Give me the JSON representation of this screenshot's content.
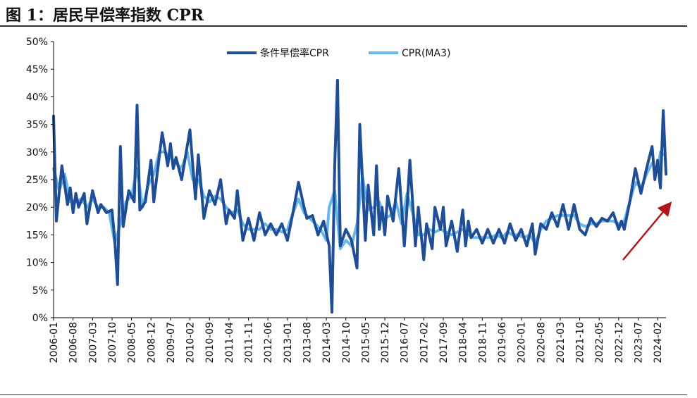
{
  "figure": {
    "title": "图 1：居民早偿率指数 CPR"
  },
  "colors": {
    "series_cpr": "#1f4e96",
    "series_ma3": "#66b8e8",
    "arrow": "#b0161a",
    "axis": "#000000"
  },
  "chart_data": {
    "type": "line",
    "ylim": [
      0,
      50
    ],
    "y_ticks": [
      "0%",
      "5%",
      "10%",
      "15%",
      "20%",
      "25%",
      "30%",
      "35%",
      "40%",
      "45%",
      "50%"
    ],
    "x_ticks": [
      "2006-01",
      "2006-08",
      "2007-03",
      "2007-10",
      "2008-05",
      "2008-12",
      "2009-07",
      "2010-02",
      "2010-09",
      "2011-04",
      "2011-11",
      "2012-06",
      "2013-01",
      "2013-08",
      "2014-03",
      "2014-10",
      "2015-05",
      "2015-12",
      "2016-07",
      "2017-02",
      "2017-09",
      "2018-04",
      "2018-11",
      "2019-06",
      "2020-01",
      "2020-08",
      "2021-03",
      "2021-10",
      "2022-05",
      "2022-12",
      "2023-07",
      "2024-02"
    ],
    "legend_position": "top-center",
    "annotation": "upward arrow near 2023-2024",
    "series": [
      {
        "name": "条件早偿率CPR",
        "points": [
          [
            "2006-01",
            36.5
          ],
          [
            "2006-02",
            17.5
          ],
          [
            "2006-04",
            27.5
          ],
          [
            "2006-06",
            20.5
          ],
          [
            "2006-07",
            23.5
          ],
          [
            "2006-08",
            19
          ],
          [
            "2006-09",
            22.5
          ],
          [
            "2006-10",
            20
          ],
          [
            "2006-12",
            22.5
          ],
          [
            "2007-01",
            17
          ],
          [
            "2007-03",
            23
          ],
          [
            "2007-05",
            19
          ],
          [
            "2007-06",
            20.5
          ],
          [
            "2007-08",
            19
          ],
          [
            "2007-10",
            19.5
          ],
          [
            "2007-11",
            14
          ],
          [
            "2007-12",
            6
          ],
          [
            "2008-01",
            31
          ],
          [
            "2008-02",
            16.5
          ],
          [
            "2008-04",
            23
          ],
          [
            "2008-06",
            21
          ],
          [
            "2008-07",
            38.5
          ],
          [
            "2008-08",
            19.5
          ],
          [
            "2008-10",
            21
          ],
          [
            "2008-12",
            28.5
          ],
          [
            "2009-01",
            21
          ],
          [
            "2009-04",
            33.5
          ],
          [
            "2009-06",
            27.5
          ],
          [
            "2009-07",
            31.5
          ],
          [
            "2009-08",
            27
          ],
          [
            "2009-09",
            29
          ],
          [
            "2009-11",
            25
          ],
          [
            "2010-02",
            34
          ],
          [
            "2010-04",
            21.5
          ],
          [
            "2010-05",
            29.5
          ],
          [
            "2010-07",
            18
          ],
          [
            "2010-09",
            23
          ],
          [
            "2010-11",
            20.5
          ],
          [
            "2011-01",
            25
          ],
          [
            "2011-03",
            17
          ],
          [
            "2011-04",
            19.5
          ],
          [
            "2011-06",
            18
          ],
          [
            "2011-07",
            23
          ],
          [
            "2011-09",
            14
          ],
          [
            "2011-11",
            18
          ],
          [
            "2012-01",
            14
          ],
          [
            "2012-03",
            19
          ],
          [
            "2012-05",
            15
          ],
          [
            "2012-07",
            17
          ],
          [
            "2012-09",
            15
          ],
          [
            "2012-11",
            17
          ],
          [
            "2013-01",
            14
          ],
          [
            "2013-03",
            19
          ],
          [
            "2013-05",
            24.5
          ],
          [
            "2013-07",
            20
          ],
          [
            "2013-08",
            18
          ],
          [
            "2013-10",
            18.5
          ],
          [
            "2013-12",
            15
          ],
          [
            "2014-02",
            17.5
          ],
          [
            "2014-04",
            13
          ],
          [
            "2014-05",
            1
          ],
          [
            "2014-06",
            27.5
          ],
          [
            "2014-07",
            43
          ],
          [
            "2014-08",
            13
          ],
          [
            "2014-10",
            16
          ],
          [
            "2014-12",
            14
          ],
          [
            "2015-02",
            9
          ],
          [
            "2015-03",
            35
          ],
          [
            "2015-05",
            14
          ],
          [
            "2015-06",
            24
          ],
          [
            "2015-08",
            15
          ],
          [
            "2015-09",
            27.5
          ],
          [
            "2015-10",
            16
          ],
          [
            "2015-11",
            20
          ],
          [
            "2015-12",
            15
          ],
          [
            "2016-01",
            22
          ],
          [
            "2016-03",
            17.5
          ],
          [
            "2016-05",
            27
          ],
          [
            "2016-07",
            13
          ],
          [
            "2016-08",
            20
          ],
          [
            "2016-09",
            28.5
          ],
          [
            "2016-11",
            13
          ],
          [
            "2016-12",
            20
          ],
          [
            "2017-02",
            10.5
          ],
          [
            "2017-03",
            17
          ],
          [
            "2017-05",
            12.5
          ],
          [
            "2017-06",
            20
          ],
          [
            "2017-08",
            16
          ],
          [
            "2017-09",
            20
          ],
          [
            "2017-10",
            13
          ],
          [
            "2017-12",
            17.5
          ],
          [
            "2018-02",
            12
          ],
          [
            "2018-04",
            19.5
          ],
          [
            "2018-05",
            13
          ],
          [
            "2018-06",
            17.5
          ],
          [
            "2018-07",
            14.5
          ],
          [
            "2018-09",
            16
          ],
          [
            "2018-11",
            13.5
          ],
          [
            "2019-01",
            16
          ],
          [
            "2019-03",
            13.5
          ],
          [
            "2019-05",
            16
          ],
          [
            "2019-07",
            13.5
          ],
          [
            "2019-09",
            17
          ],
          [
            "2019-11",
            14
          ],
          [
            "2020-01",
            16
          ],
          [
            "2020-03",
            13
          ],
          [
            "2020-05",
            17
          ],
          [
            "2020-06",
            11.5
          ],
          [
            "2020-08",
            17
          ],
          [
            "2020-10",
            16
          ],
          [
            "2020-12",
            19
          ],
          [
            "2021-02",
            16.5
          ],
          [
            "2021-04",
            20.5
          ],
          [
            "2021-06",
            16
          ],
          [
            "2021-08",
            20.5
          ],
          [
            "2021-10",
            16
          ],
          [
            "2021-12",
            15
          ],
          [
            "2022-02",
            18
          ],
          [
            "2022-04",
            16.5
          ],
          [
            "2022-06",
            18
          ],
          [
            "2022-08",
            17.5
          ],
          [
            "2022-10",
            19
          ],
          [
            "2022-12",
            16
          ],
          [
            "2023-01",
            17.5
          ],
          [
            "2023-02",
            16
          ],
          [
            "2023-04",
            21
          ],
          [
            "2023-06",
            27
          ],
          [
            "2023-08",
            22.5
          ],
          [
            "2023-10",
            27
          ],
          [
            "2023-12",
            31
          ],
          [
            "2024-01",
            25
          ],
          [
            "2024-02",
            28.5
          ],
          [
            "2024-03",
            23.5
          ],
          [
            "2024-04",
            37.5
          ],
          [
            "2024-05",
            26
          ]
        ]
      },
      {
        "name": "CPR(MA3)",
        "points": [
          [
            "2006-01",
            27
          ],
          [
            "2006-03",
            23
          ],
          [
            "2006-05",
            26
          ],
          [
            "2006-07",
            21
          ],
          [
            "2006-09",
            21
          ],
          [
            "2006-11",
            21.5
          ],
          [
            "2007-01",
            20
          ],
          [
            "2007-03",
            21.5
          ],
          [
            "2007-05",
            20
          ],
          [
            "2007-07",
            20
          ],
          [
            "2007-09",
            19
          ],
          [
            "2007-11",
            13.5
          ],
          [
            "2008-01",
            17
          ],
          [
            "2008-03",
            21
          ],
          [
            "2008-05",
            22
          ],
          [
            "2008-07",
            27
          ],
          [
            "2008-09",
            20
          ],
          [
            "2008-11",
            24
          ],
          [
            "2009-01",
            26
          ],
          [
            "2009-03",
            30
          ],
          [
            "2009-05",
            30
          ],
          [
            "2009-07",
            29
          ],
          [
            "2009-09",
            28
          ],
          [
            "2009-11",
            27
          ],
          [
            "2010-01",
            30
          ],
          [
            "2010-03",
            25
          ],
          [
            "2010-05",
            25
          ],
          [
            "2010-07",
            22
          ],
          [
            "2010-09",
            21
          ],
          [
            "2010-11",
            22
          ],
          [
            "2011-01",
            21.5
          ],
          [
            "2011-03",
            20
          ],
          [
            "2011-05",
            19
          ],
          [
            "2011-07",
            19.5
          ],
          [
            "2011-09",
            17
          ],
          [
            "2011-11",
            16
          ],
          [
            "2012-01",
            16
          ],
          [
            "2012-03",
            16
          ],
          [
            "2012-05",
            17
          ],
          [
            "2012-07",
            16
          ],
          [
            "2012-09",
            16
          ],
          [
            "2012-11",
            15.5
          ],
          [
            "2013-01",
            16
          ],
          [
            "2013-03",
            19
          ],
          [
            "2013-05",
            21.5
          ],
          [
            "2013-07",
            19
          ],
          [
            "2013-09",
            18
          ],
          [
            "2013-11",
            17
          ],
          [
            "2014-01",
            16
          ],
          [
            "2014-03",
            14
          ],
          [
            "2014-04",
            20
          ],
          [
            "2014-06",
            23
          ],
          [
            "2014-08",
            12.5
          ],
          [
            "2014-10",
            14
          ],
          [
            "2014-12",
            13
          ],
          [
            "2015-02",
            17
          ],
          [
            "2015-04",
            25.5
          ],
          [
            "2015-06",
            19.5
          ],
          [
            "2015-08",
            20
          ],
          [
            "2015-10",
            21
          ],
          [
            "2015-12",
            18
          ],
          [
            "2016-02",
            18.5
          ],
          [
            "2016-04",
            21
          ],
          [
            "2016-06",
            17
          ],
          [
            "2016-08",
            22.5
          ],
          [
            "2016-10",
            19
          ],
          [
            "2016-12",
            15
          ],
          [
            "2017-02",
            15
          ],
          [
            "2017-04",
            16
          ],
          [
            "2017-06",
            15.5
          ],
          [
            "2017-08",
            16
          ],
          [
            "2017-10",
            15.5
          ],
          [
            "2017-12",
            15
          ],
          [
            "2018-02",
            15.5
          ],
          [
            "2018-04",
            16
          ],
          [
            "2018-06",
            15
          ],
          [
            "2018-08",
            14.5
          ],
          [
            "2018-10",
            14.5
          ],
          [
            "2018-12",
            14.5
          ],
          [
            "2019-02",
            14.5
          ],
          [
            "2019-04",
            15
          ],
          [
            "2019-06",
            14.5
          ],
          [
            "2019-08",
            15.5
          ],
          [
            "2019-10",
            15
          ],
          [
            "2019-12",
            15
          ],
          [
            "2020-02",
            14.5
          ],
          [
            "2020-04",
            15
          ],
          [
            "2020-06",
            13.5
          ],
          [
            "2020-08",
            16
          ],
          [
            "2020-10",
            17.5
          ],
          [
            "2020-12",
            18
          ],
          [
            "2021-02",
            18.5
          ],
          [
            "2021-04",
            18.5
          ],
          [
            "2021-06",
            18.5
          ],
          [
            "2021-08",
            18.5
          ],
          [
            "2021-10",
            17
          ],
          [
            "2021-12",
            16.5
          ],
          [
            "2022-02",
            17
          ],
          [
            "2022-04",
            17
          ],
          [
            "2022-06",
            17.5
          ],
          [
            "2022-08",
            17.5
          ],
          [
            "2022-10",
            17.5
          ],
          [
            "2022-12",
            17
          ],
          [
            "2023-02",
            17.5
          ],
          [
            "2023-04",
            21
          ],
          [
            "2023-06",
            24.5
          ],
          [
            "2023-08",
            23.5
          ],
          [
            "2023-10",
            26
          ],
          [
            "2023-12",
            28
          ],
          [
            "2024-02",
            26.5
          ],
          [
            "2024-03",
            30
          ],
          [
            "2024-04",
            29.5
          ]
        ]
      }
    ]
  }
}
